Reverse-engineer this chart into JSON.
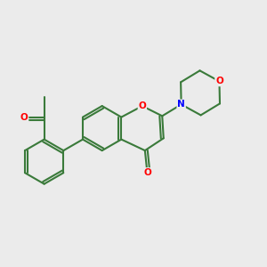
{
  "background_color": "#ebebeb",
  "bond_color": "#3a7a3a",
  "bond_width": 1.5,
  "atom_colors": {
    "O": "#ff0000",
    "N": "#0000ff"
  },
  "figsize": [
    3.0,
    3.0
  ],
  "dpi": 100
}
